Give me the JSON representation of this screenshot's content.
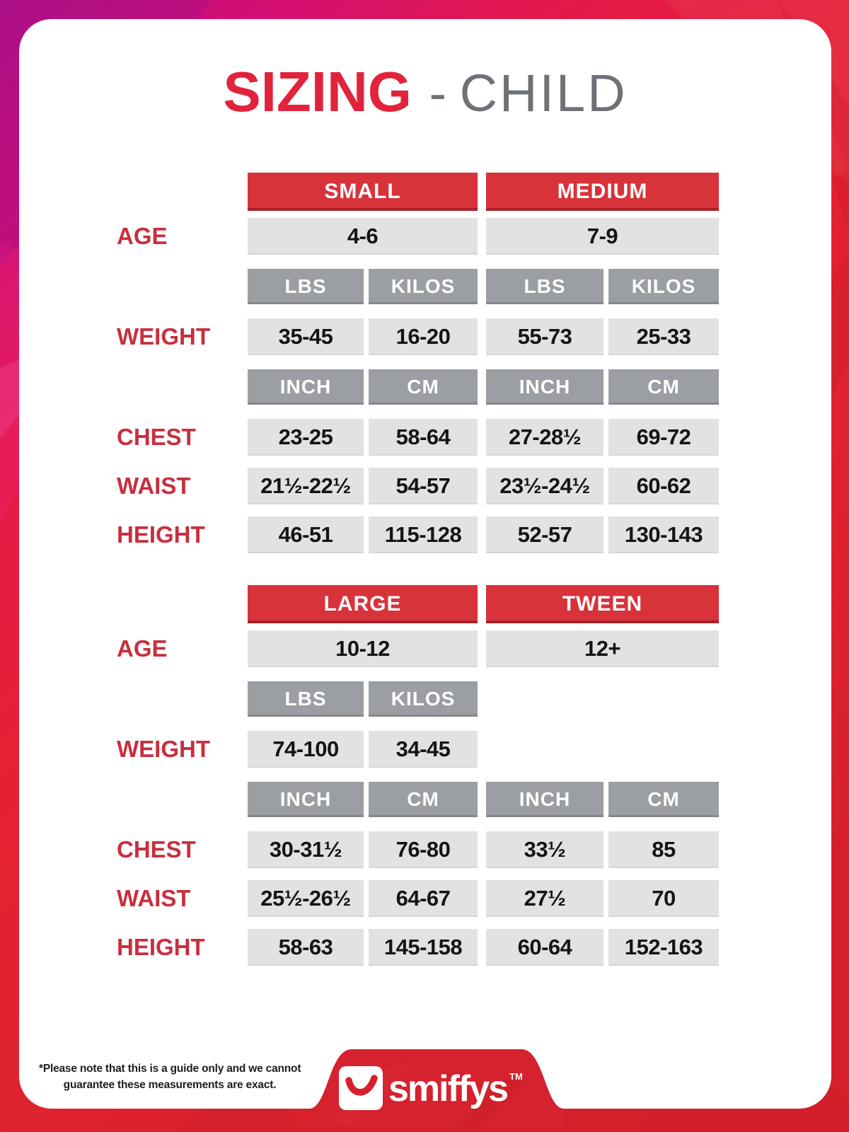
{
  "title": {
    "primary": "SIZING",
    "separator": "-",
    "secondary": "CHILD"
  },
  "colors": {
    "brand_red": "#d8323b",
    "title_red": "#e2233c",
    "label_red": "#c82f3d",
    "gray_header": "#9b9ea2",
    "light_cell": "#e1e2e2",
    "title_gray": "#6e7278",
    "background_magenta": "#b61287",
    "background_red": "#e02330"
  },
  "tables": [
    {
      "sizes": [
        "SMALL",
        "MEDIUM"
      ],
      "age": {
        "label": "AGE",
        "values": [
          "4-6",
          "7-9"
        ]
      },
      "weight": {
        "label": "WEIGHT",
        "unit_headers": [
          "LBS",
          "KILOS",
          "LBS",
          "KILOS"
        ],
        "values": [
          "35-45",
          "16-20",
          "55-73",
          "25-33"
        ]
      },
      "measure_unit_headers": [
        "INCH",
        "CM",
        "INCH",
        "CM"
      ],
      "rows": [
        {
          "label": "CHEST",
          "values": [
            "23-25",
            "58-64",
            "27-28½",
            "69-72"
          ]
        },
        {
          "label": "WAIST",
          "values": [
            "21½-22½",
            "54-57",
            "23½-24½",
            "60-62"
          ]
        },
        {
          "label": "HEIGHT",
          "values": [
            "46-51",
            "115-128",
            "52-57",
            "130-143"
          ]
        }
      ]
    },
    {
      "sizes": [
        "LARGE",
        "TWEEN"
      ],
      "age": {
        "label": "AGE",
        "values": [
          "10-12",
          "12+"
        ]
      },
      "weight": {
        "label": "WEIGHT",
        "unit_headers": [
          "LBS",
          "KILOS",
          null,
          null
        ],
        "values": [
          "74-100",
          "34-45",
          null,
          null
        ]
      },
      "measure_unit_headers": [
        "INCH",
        "CM",
        "INCH",
        "CM"
      ],
      "rows": [
        {
          "label": "CHEST",
          "values": [
            "30-31½",
            "76-80",
            "33½",
            "85"
          ]
        },
        {
          "label": "WAIST",
          "values": [
            "25½-26½",
            "64-67",
            "27½",
            "70"
          ]
        },
        {
          "label": "HEIGHT",
          "values": [
            "58-63",
            "145-158",
            "60-64",
            "152-163"
          ]
        }
      ]
    }
  ],
  "footer": {
    "note_line1": "*Please note that this is a guide only and we cannot",
    "note_line2": "guarantee these measurements are exact.",
    "logo_text": "smiffys",
    "logo_tm": "TM"
  }
}
